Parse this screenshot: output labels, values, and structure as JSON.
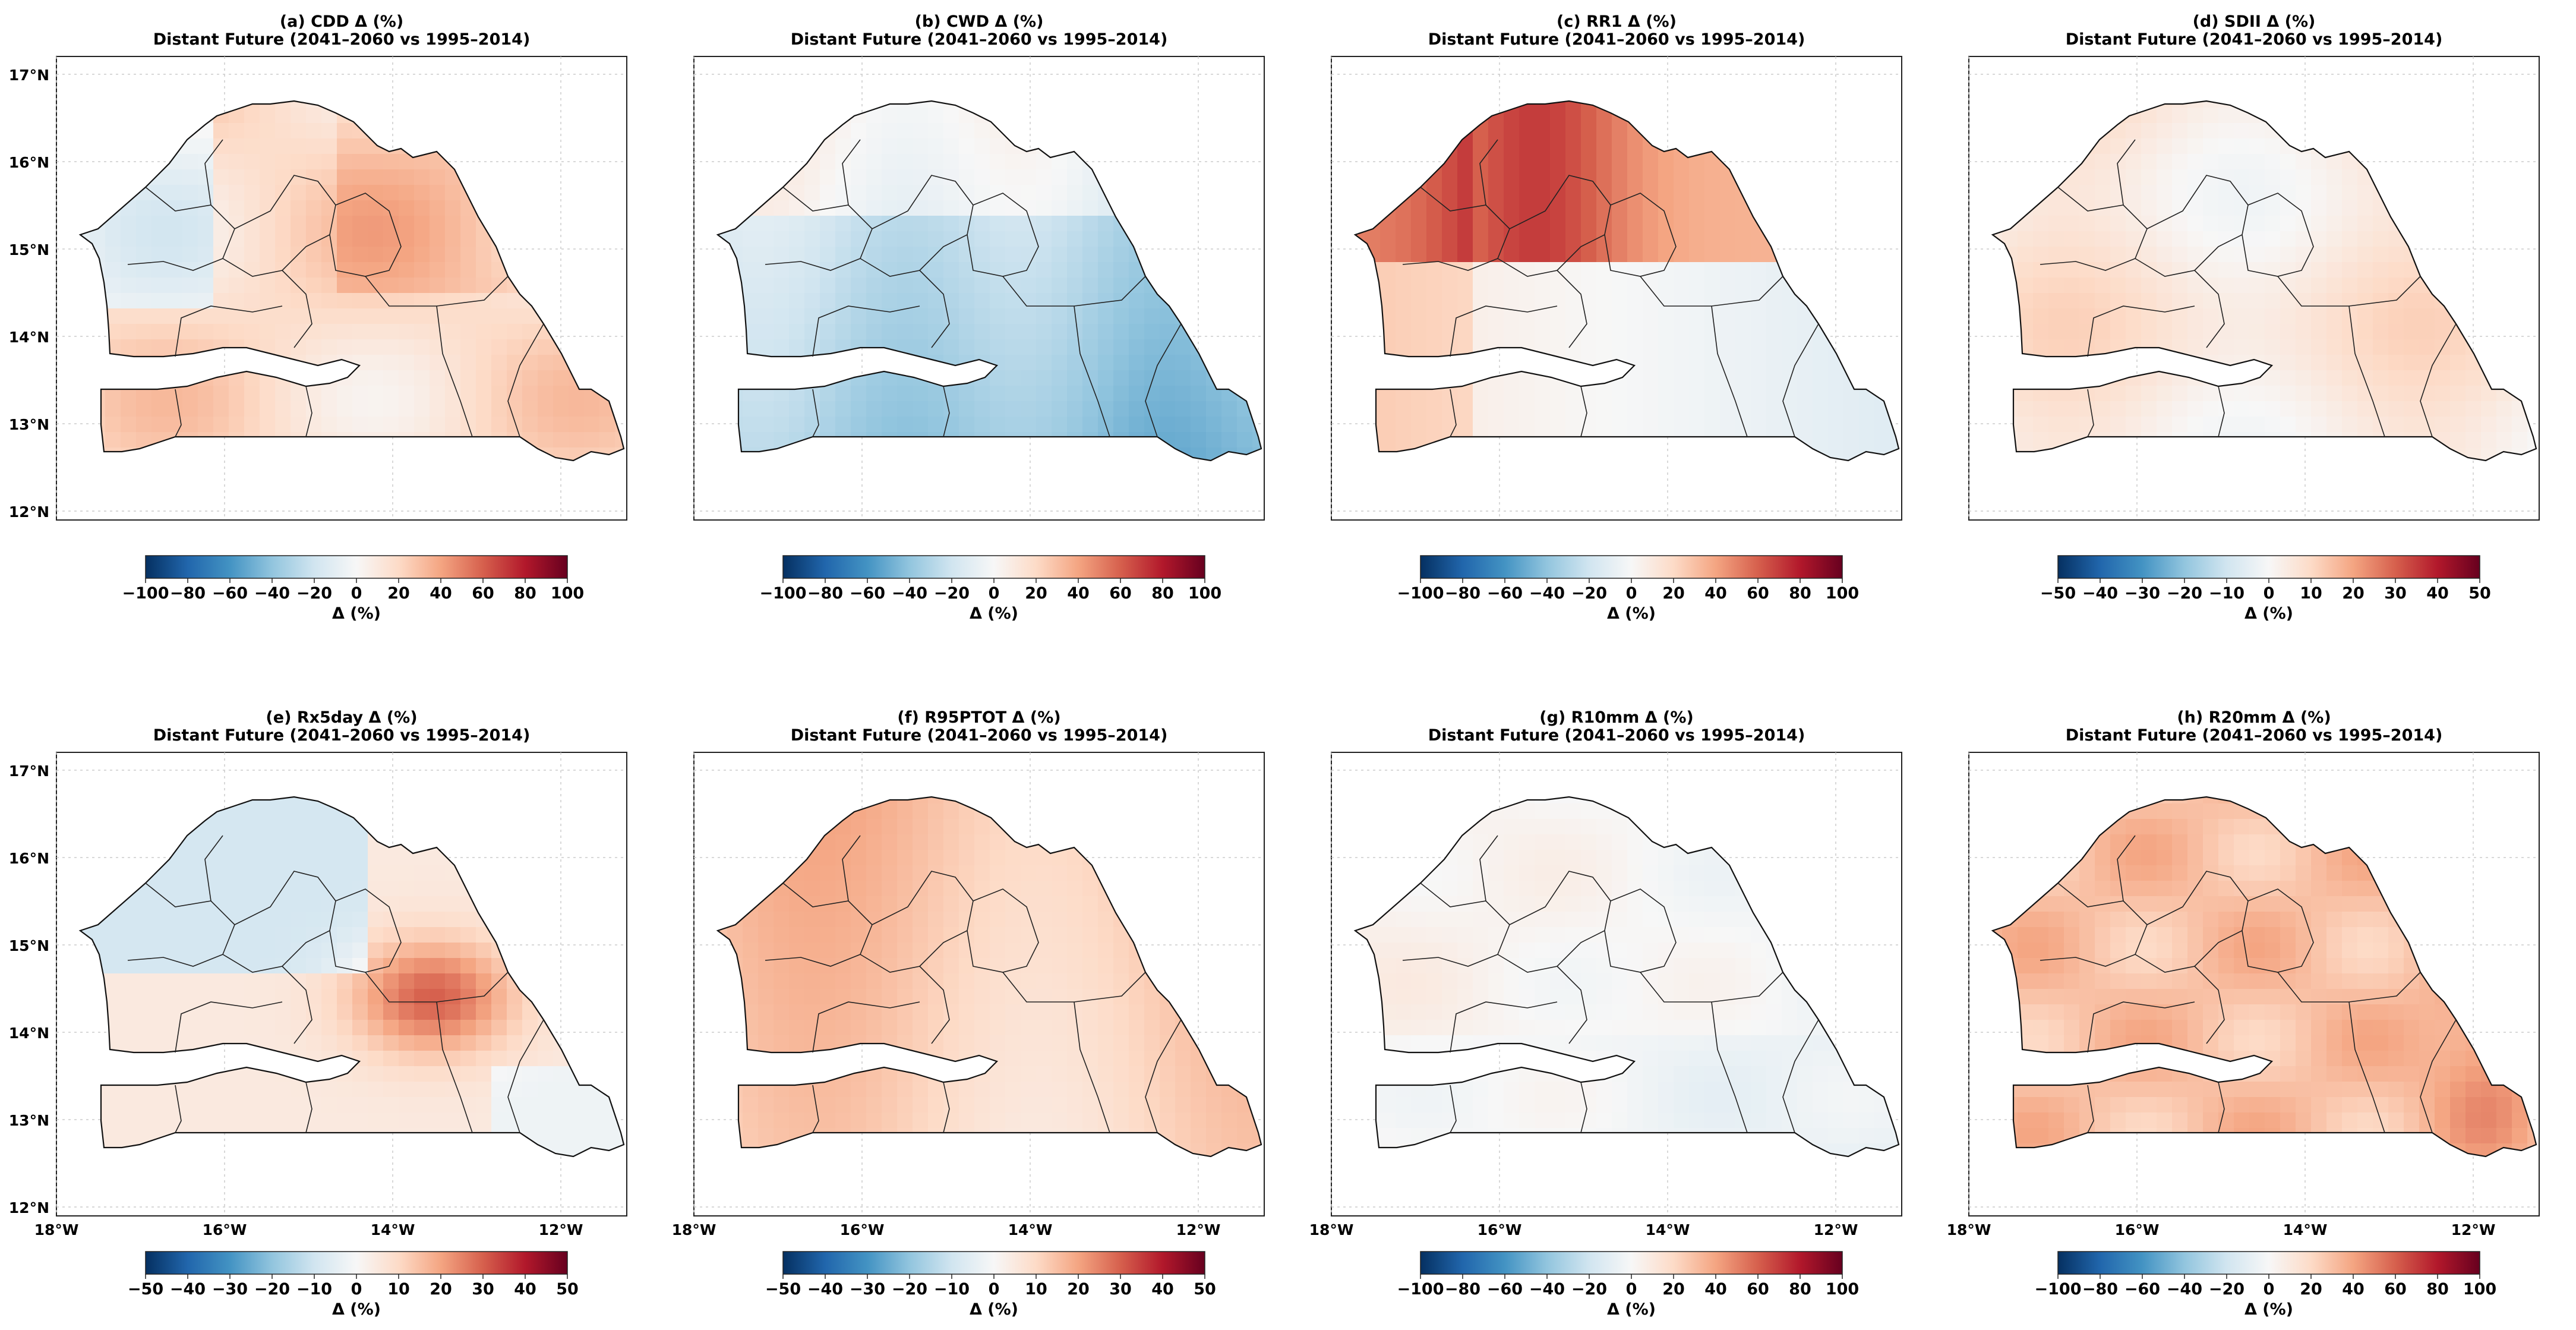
{
  "figure": {
    "subtitle": "Distant Future (2041–2060 vs 1995–2014)",
    "lat_ticks": [
      "17°N",
      "16°N",
      "15°N",
      "14°N",
      "13°N",
      "12°N"
    ],
    "lon_ticks": [
      "18°W",
      "16°W",
      "14°W",
      "12°W"
    ],
    "colorbar_label": "Δ (%)",
    "colors": {
      "neg_strong": "#053061",
      "neg_mid": "#4393c3",
      "neutral": "#f7f7f7",
      "pos_mid": "#f4a582",
      "pos_strong": "#67001f"
    }
  },
  "panels": [
    {
      "title": "(a) CDD Δ (%)",
      "range": [
        -100,
        100
      ],
      "ticks": [
        "−100",
        "−80",
        "−60",
        "−40",
        "−20",
        "0",
        "20",
        "40",
        "60",
        "80",
        "100"
      ],
      "mean_delta": 12,
      "dominant": "warm"
    },
    {
      "title": "(b) CWD Δ (%)",
      "range": [
        -100,
        100
      ],
      "ticks": [
        "−100",
        "−80",
        "−60",
        "−40",
        "−20",
        "0",
        "20",
        "40",
        "60",
        "80",
        "100"
      ],
      "mean_delta": -15,
      "dominant": "cool"
    },
    {
      "title": "(c) RR1 Δ (%)",
      "range": [
        -100,
        100
      ],
      "ticks": [
        "−100",
        "−80",
        "−60",
        "−40",
        "−20",
        "0",
        "20",
        "40",
        "60",
        "80",
        "100"
      ],
      "mean_delta": 20,
      "dominant": "mixed-north-warm"
    },
    {
      "title": "(d) SDII Δ (%)",
      "range": [
        -50,
        50
      ],
      "ticks": [
        "−50",
        "−40",
        "−30",
        "−20",
        "−10",
        "0",
        "10",
        "20",
        "30",
        "40",
        "50"
      ],
      "mean_delta": 5,
      "dominant": "weak-warm"
    },
    {
      "title": "(e) Rx5day Δ (%)",
      "range": [
        -50,
        50
      ],
      "ticks": [
        "−50",
        "−40",
        "−30",
        "−20",
        "−10",
        "0",
        "10",
        "20",
        "30",
        "40",
        "50"
      ],
      "mean_delta": 8,
      "dominant": "mixed-center-warm"
    },
    {
      "title": "(f) R95PTOT Δ (%)",
      "range": [
        -50,
        50
      ],
      "ticks": [
        "−50",
        "−40",
        "−30",
        "−20",
        "−10",
        "0",
        "10",
        "20",
        "30",
        "40",
        "50"
      ],
      "mean_delta": 18,
      "dominant": "warm"
    },
    {
      "title": "(g) R10mm Δ (%)",
      "range": [
        -100,
        100
      ],
      "ticks": [
        "−100",
        "−80",
        "−60",
        "−40",
        "−20",
        "0",
        "20",
        "40",
        "60",
        "80",
        "100"
      ],
      "mean_delta": -3,
      "dominant": "weak-cool"
    },
    {
      "title": "(h) R20mm Δ (%)",
      "range": [
        -100,
        100
      ],
      "ticks": [
        "−100",
        "−80",
        "−60",
        "−40",
        "−20",
        "0",
        "20",
        "40",
        "60",
        "80",
        "100"
      ],
      "mean_delta": 25,
      "dominant": "warm"
    }
  ]
}
